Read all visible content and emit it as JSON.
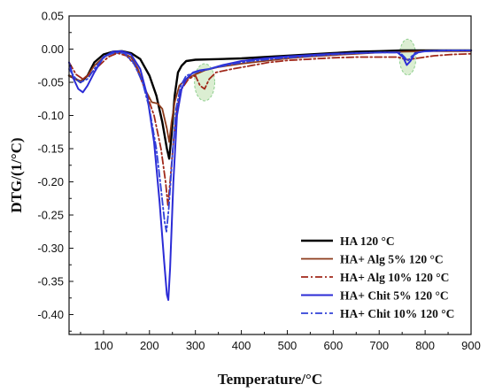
{
  "chart_data": {
    "type": "line",
    "xlabel": "Temperature/°C",
    "ylabel": "DTG/(1/°C)",
    "xlim": [
      25,
      900
    ],
    "ylim": [
      -0.43,
      0.05
    ],
    "x_ticks": [
      100,
      200,
      300,
      400,
      500,
      600,
      700,
      800,
      900
    ],
    "y_ticks": [
      0.05,
      0.0,
      -0.05,
      -0.1,
      -0.15,
      -0.2,
      -0.25,
      -0.3,
      -0.35,
      -0.4
    ],
    "x_tick_labels": [
      "100",
      "200",
      "300",
      "400",
      "500",
      "600",
      "700",
      "800",
      "900"
    ],
    "y_tick_labels": [
      "0.05",
      "0.00",
      "-0.05",
      "-0.10",
      "-0.15",
      "-0.20",
      "-0.25",
      "-0.30",
      "-0.35",
      "-0.40"
    ],
    "legend_position": "bottom-right",
    "highlights": [
      {
        "x": 320,
        "y": -0.05,
        "rx": 22,
        "ry": 0.028,
        "color": "#cfe8c3"
      },
      {
        "x": 762,
        "y": -0.012,
        "rx": 18,
        "ry": 0.027,
        "color": "#cfe8c3"
      }
    ],
    "series": [
      {
        "name": "HA 120 °C",
        "color": "#000000",
        "width": 2.4,
        "dash": "",
        "points": [
          [
            25,
            -0.04
          ],
          [
            40,
            -0.045
          ],
          [
            50,
            -0.05
          ],
          [
            65,
            -0.04
          ],
          [
            80,
            -0.02
          ],
          [
            100,
            -0.008
          ],
          [
            120,
            -0.004
          ],
          [
            140,
            -0.003
          ],
          [
            160,
            -0.006
          ],
          [
            180,
            -0.015
          ],
          [
            200,
            -0.04
          ],
          [
            215,
            -0.07
          ],
          [
            228,
            -0.11
          ],
          [
            238,
            -0.15
          ],
          [
            243,
            -0.165
          ],
          [
            248,
            -0.13
          ],
          [
            255,
            -0.07
          ],
          [
            262,
            -0.035
          ],
          [
            270,
            -0.025
          ],
          [
            280,
            -0.018
          ],
          [
            300,
            -0.016
          ],
          [
            350,
            -0.015
          ],
          [
            400,
            -0.014
          ],
          [
            450,
            -0.012
          ],
          [
            500,
            -0.01
          ],
          [
            550,
            -0.008
          ],
          [
            600,
            -0.006
          ],
          [
            650,
            -0.004
          ],
          [
            700,
            -0.003
          ],
          [
            750,
            -0.002
          ],
          [
            800,
            -0.002
          ],
          [
            850,
            -0.002
          ],
          [
            900,
            -0.002
          ]
        ]
      },
      {
        "name": "HA+ Alg 5% 120 °C",
        "color": "#8b3a1a",
        "width": 1.8,
        "dash": "",
        "points": [
          [
            25,
            -0.04
          ],
          [
            40,
            -0.045
          ],
          [
            50,
            -0.048
          ],
          [
            65,
            -0.04
          ],
          [
            80,
            -0.025
          ],
          [
            100,
            -0.012
          ],
          [
            120,
            -0.006
          ],
          [
            140,
            -0.005
          ],
          [
            160,
            -0.012
          ],
          [
            175,
            -0.03
          ],
          [
            190,
            -0.06
          ],
          [
            205,
            -0.08
          ],
          [
            218,
            -0.082
          ],
          [
            228,
            -0.09
          ],
          [
            238,
            -0.12
          ],
          [
            243,
            -0.14
          ],
          [
            248,
            -0.11
          ],
          [
            255,
            -0.08
          ],
          [
            265,
            -0.055
          ],
          [
            280,
            -0.045
          ],
          [
            300,
            -0.038
          ],
          [
            320,
            -0.032
          ],
          [
            350,
            -0.027
          ],
          [
            400,
            -0.022
          ],
          [
            450,
            -0.018
          ],
          [
            500,
            -0.014
          ],
          [
            550,
            -0.011
          ],
          [
            600,
            -0.009
          ],
          [
            650,
            -0.007
          ],
          [
            700,
            -0.005
          ],
          [
            750,
            -0.004
          ],
          [
            800,
            -0.003
          ],
          [
            850,
            -0.003
          ],
          [
            900,
            -0.003
          ]
        ]
      },
      {
        "name": "HA+ Alg 10% 120 °C",
        "color": "#a0281a",
        "width": 1.8,
        "dash": "8,3,2,3",
        "points": [
          [
            25,
            -0.02
          ],
          [
            40,
            -0.038
          ],
          [
            55,
            -0.045
          ],
          [
            70,
            -0.038
          ],
          [
            90,
            -0.025
          ],
          [
            110,
            -0.012
          ],
          [
            130,
            -0.006
          ],
          [
            150,
            -0.01
          ],
          [
            170,
            -0.025
          ],
          [
            190,
            -0.06
          ],
          [
            210,
            -0.1
          ],
          [
            225,
            -0.15
          ],
          [
            235,
            -0.2
          ],
          [
            240,
            -0.235
          ],
          [
            245,
            -0.2
          ],
          [
            252,
            -0.14
          ],
          [
            260,
            -0.09
          ],
          [
            270,
            -0.06
          ],
          [
            285,
            -0.045
          ],
          [
            300,
            -0.04
          ],
          [
            310,
            -0.055
          ],
          [
            320,
            -0.06
          ],
          [
            330,
            -0.045
          ],
          [
            345,
            -0.035
          ],
          [
            380,
            -0.03
          ],
          [
            420,
            -0.025
          ],
          [
            460,
            -0.02
          ],
          [
            500,
            -0.017
          ],
          [
            550,
            -0.015
          ],
          [
            600,
            -0.013
          ],
          [
            650,
            -0.012
          ],
          [
            700,
            -0.012
          ],
          [
            740,
            -0.012
          ],
          [
            760,
            -0.016
          ],
          [
            780,
            -0.014
          ],
          [
            820,
            -0.01
          ],
          [
            860,
            -0.008
          ],
          [
            900,
            -0.007
          ]
        ]
      },
      {
        "name": "HA+ Chit 5% 120 °C",
        "color": "#2b2bd6",
        "width": 2.0,
        "dash": "",
        "points": [
          [
            25,
            -0.02
          ],
          [
            35,
            -0.045
          ],
          [
            45,
            -0.06
          ],
          [
            55,
            -0.065
          ],
          [
            65,
            -0.055
          ],
          [
            80,
            -0.035
          ],
          [
            100,
            -0.012
          ],
          [
            120,
            -0.004
          ],
          [
            140,
            -0.003
          ],
          [
            160,
            -0.008
          ],
          [
            180,
            -0.03
          ],
          [
            195,
            -0.07
          ],
          [
            210,
            -0.14
          ],
          [
            222,
            -0.23
          ],
          [
            232,
            -0.32
          ],
          [
            238,
            -0.37
          ],
          [
            241,
            -0.378
          ],
          [
            245,
            -0.33
          ],
          [
            252,
            -0.2
          ],
          [
            260,
            -0.1
          ],
          [
            270,
            -0.06
          ],
          [
            280,
            -0.045
          ],
          [
            295,
            -0.035
          ],
          [
            310,
            -0.032
          ],
          [
            330,
            -0.03
          ],
          [
            360,
            -0.024
          ],
          [
            400,
            -0.018
          ],
          [
            450,
            -0.014
          ],
          [
            500,
            -0.011
          ],
          [
            550,
            -0.009
          ],
          [
            600,
            -0.007
          ],
          [
            650,
            -0.006
          ],
          [
            700,
            -0.005
          ],
          [
            740,
            -0.005
          ],
          [
            752,
            -0.012
          ],
          [
            760,
            -0.024
          ],
          [
            768,
            -0.018
          ],
          [
            778,
            -0.006
          ],
          [
            800,
            -0.003
          ],
          [
            850,
            -0.002
          ],
          [
            900,
            -0.002
          ]
        ]
      },
      {
        "name": "HA+ Chit 10% 120 °C",
        "color": "#3040d8",
        "width": 1.8,
        "dash": "8,3,2,3",
        "points": [
          [
            25,
            -0.03
          ],
          [
            40,
            -0.045
          ],
          [
            50,
            -0.05
          ],
          [
            65,
            -0.045
          ],
          [
            85,
            -0.025
          ],
          [
            105,
            -0.01
          ],
          [
            125,
            -0.005
          ],
          [
            145,
            -0.006
          ],
          [
            165,
            -0.02
          ],
          [
            185,
            -0.05
          ],
          [
            200,
            -0.09
          ],
          [
            215,
            -0.15
          ],
          [
            225,
            -0.21
          ],
          [
            233,
            -0.26
          ],
          [
            237,
            -0.275
          ],
          [
            242,
            -0.24
          ],
          [
            250,
            -0.16
          ],
          [
            258,
            -0.09
          ],
          [
            268,
            -0.055
          ],
          [
            280,
            -0.04
          ],
          [
            300,
            -0.035
          ],
          [
            330,
            -0.03
          ],
          [
            370,
            -0.024
          ],
          [
            420,
            -0.018
          ],
          [
            480,
            -0.014
          ],
          [
            540,
            -0.011
          ],
          [
            600,
            -0.008
          ],
          [
            650,
            -0.006
          ],
          [
            700,
            -0.005
          ],
          [
            745,
            -0.005
          ],
          [
            755,
            -0.012
          ],
          [
            762,
            -0.018
          ],
          [
            772,
            -0.01
          ],
          [
            790,
            -0.004
          ],
          [
            840,
            -0.002
          ],
          [
            900,
            -0.002
          ]
        ]
      }
    ]
  }
}
